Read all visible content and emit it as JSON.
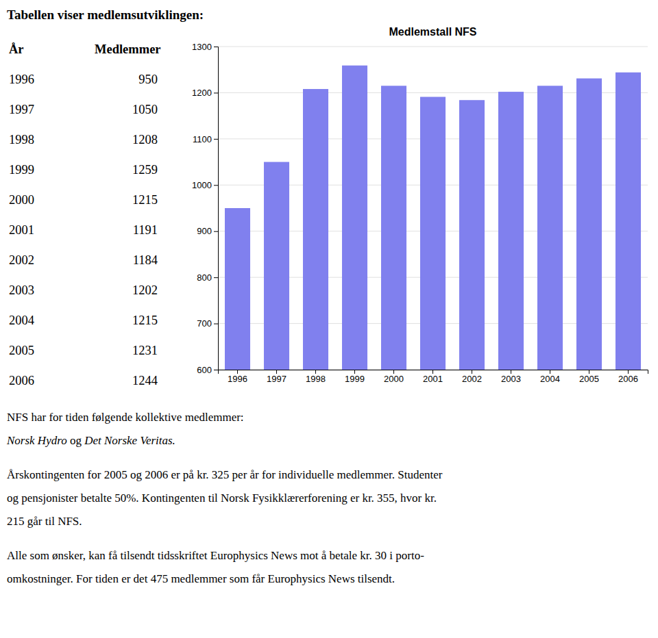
{
  "heading": "Tabellen viser medlemsutviklingen:",
  "table": {
    "header": [
      "År",
      "Medlemmer"
    ],
    "years": [
      1996,
      1997,
      1998,
      1999,
      2000,
      2001,
      2002,
      2003,
      2004,
      2005,
      2006
    ],
    "members": [
      950,
      1050,
      1208,
      1259,
      1215,
      1191,
      1184,
      1202,
      1215,
      1231,
      1244
    ]
  },
  "chart_data": {
    "type": "bar",
    "title": "Medlemstall NFS",
    "categories": [
      "1996",
      "1997",
      "1998",
      "1999",
      "2000",
      "2001",
      "2002",
      "2003",
      "2004",
      "2005",
      "2006"
    ],
    "values": [
      950,
      1050,
      1208,
      1259,
      1215,
      1191,
      1184,
      1202,
      1215,
      1231,
      1244
    ],
    "color": "#8080ee",
    "ylim": [
      600,
      1300
    ],
    "yticks": [
      600,
      700,
      800,
      900,
      1000,
      1100,
      1200,
      1300
    ],
    "grid": true
  },
  "body": {
    "para1_line1": "NFS har for tiden følgende kollektive medlemmer:",
    "para1_line2": [
      "Norsk Hydro",
      " og ",
      "Det Norske Veritas."
    ],
    "para2_lines": [
      "Årskontingenten for 2005 og 2006 er på kr. 325 per år for individuelle medlemmer. Studenter",
      "og pensjonister betalte 50%. Kontingenten til Norsk Fysikklærerforening er kr. 355, hvor kr.",
      "215 går til NFS."
    ],
    "para3_lines": [
      "Alle som ønsker, kan få tilsendt tidsskriftet Europhysics News mot å betale kr. 30 i porto-",
      "omkostninger. For tiden er det 475 medlemmer som får Europhysics News tilsendt."
    ]
  }
}
